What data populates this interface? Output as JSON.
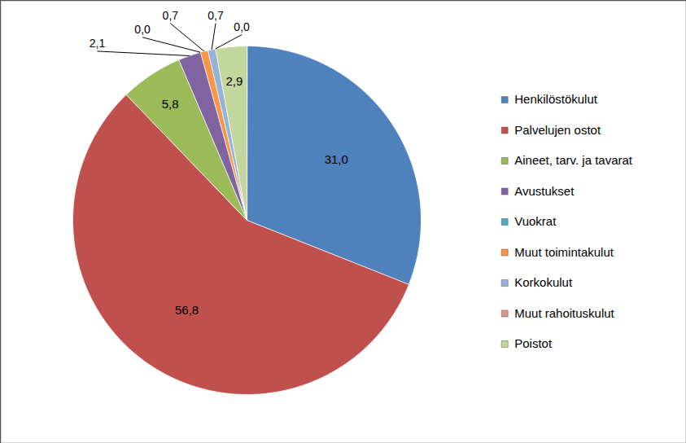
{
  "chart_data": {
    "type": "pie",
    "categories": [
      "Henkilöstökulut",
      "Palvelujen ostot",
      "Aineet, tarv. ja tavarat",
      "Avustukset",
      "Vuokrat",
      "Muut toimintakulut",
      "Korkokulut",
      "Muut rahoituskulut",
      "Poistot"
    ],
    "values": [
      31.0,
      56.8,
      5.8,
      2.1,
      0.0,
      0.7,
      0.7,
      0.0,
      2.9
    ],
    "value_labels": [
      "31,0",
      "56,8",
      "5,8",
      "2,1",
      "0,0",
      "0,7",
      "0,7",
      "0,0",
      "2,9"
    ],
    "colors": [
      "#4f81bd",
      "#c0504d",
      "#9bbb59",
      "#8064a2",
      "#4bacc6",
      "#f79646",
      "#95b3d7",
      "#d99694",
      "#c3d69b"
    ],
    "data_labels": true,
    "legend": "right"
  }
}
